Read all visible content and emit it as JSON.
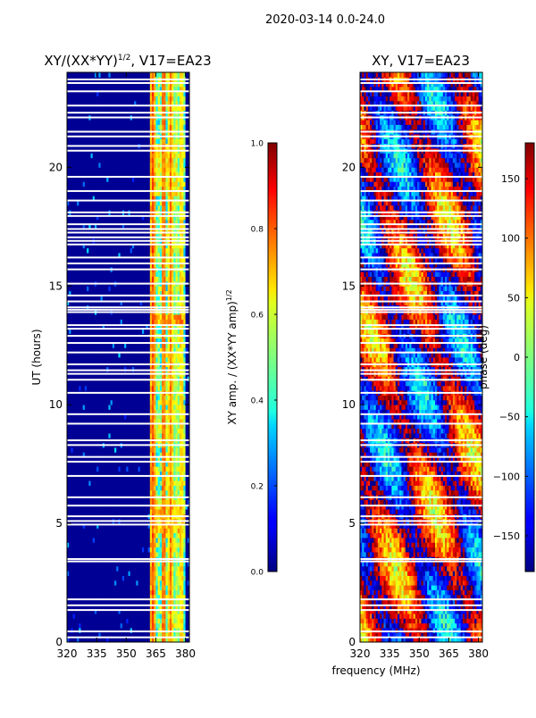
{
  "figure": {
    "suptitle": "2020-03-14 0.0-24.0",
    "shared_xlabel": "frequency (MHz)",
    "colors": {
      "background": "#ffffff",
      "flag_gap": "#ffffff",
      "low": "#00007f",
      "mid": "#7fff7f",
      "high": "#7f0000"
    }
  },
  "chart_data": [
    {
      "type": "heatmap",
      "title_prefix": "XY/(XX*YY)",
      "title_superscript": "1/2",
      "title_suffix": ", V17=EA23",
      "xlabel": "",
      "ylabel": "UT (hours)",
      "x_ticks": [
        320,
        335,
        350,
        365,
        380
      ],
      "y_ticks": [
        0,
        5,
        10,
        15,
        20
      ],
      "xlim": [
        320,
        382
      ],
      "ylim": [
        0,
        24
      ],
      "quantity": "normalized XY amplitude",
      "background_level": 0.02,
      "bright_band_mhz": [
        362,
        380
      ],
      "bright_band_level": 0.5,
      "vertical_stripes_mhz": [
        {
          "x": 363.5,
          "level": 0.8
        },
        {
          "x": 366.5,
          "level": 0.35
        },
        {
          "x": 369.0,
          "level": 0.8
        },
        {
          "x": 372.5,
          "level": 0.75
        },
        {
          "x": 375.5,
          "level": 0.55
        },
        {
          "x": 378.0,
          "level": 0.7
        }
      ],
      "hot_spots": [
        {
          "x0": 363,
          "x1": 380,
          "y0": 13.35,
          "y1": 13.8,
          "level": 0.8
        },
        {
          "x0": 363,
          "x1": 380,
          "y0": 4.6,
          "y1": 6.0,
          "level": 0.75
        },
        {
          "x0": 363,
          "x1": 372,
          "y0": 8.5,
          "y1": 9.6,
          "level": 0.65
        },
        {
          "x0": 363,
          "x1": 376,
          "y0": 18.9,
          "y1": 21.0,
          "level": 0.7
        }
      ],
      "flagged_ut_hours": [
        0.2,
        0.45,
        1.35,
        1.55,
        1.8,
        3.4,
        3.5,
        4.95,
        5.1,
        5.3,
        5.75,
        6.1,
        7.0,
        7.6,
        7.8,
        8.3,
        8.5,
        9.2,
        9.6,
        10.5,
        11.05,
        11.3,
        11.45,
        11.7,
        12.2,
        12.6,
        12.9,
        13.2,
        13.35,
        13.9,
        14.0,
        14.1,
        14.35,
        14.6,
        15.1,
        15.7,
        15.95,
        16.2,
        16.75,
        16.9,
        17.05,
        17.25,
        17.4,
        17.6,
        17.95,
        18.1,
        18.6,
        19.0,
        19.6,
        20.7,
        20.9,
        21.3,
        21.5,
        22.1,
        22.3,
        22.6,
        23.2,
        23.55,
        23.7
      ],
      "colorbar": {
        "label_prefix": "XY amp. / (XX*YY amp)",
        "label_superscript": "1/2",
        "range": [
          0.0,
          1.0
        ],
        "ticks": [
          "0.0",
          "0.2",
          "0.4",
          "0.6",
          "0.8",
          "1.0"
        ]
      }
    },
    {
      "type": "heatmap",
      "title": "XY, V17=EA23",
      "xlabel": "frequency (MHz)",
      "ylabel": "",
      "x_ticks": [
        320,
        335,
        350,
        365,
        380
      ],
      "y_ticks": [
        0,
        5,
        10,
        15,
        20
      ],
      "xlim": [
        320,
        382
      ],
      "ylim": [
        0,
        24
      ],
      "quantity": "XY phase (deg), noisy and wrapping",
      "flagged_ut_hours": [
        0.2,
        0.45,
        1.35,
        1.55,
        1.8,
        3.4,
        3.5,
        4.95,
        5.1,
        5.3,
        5.75,
        6.1,
        7.0,
        7.6,
        7.8,
        8.3,
        8.5,
        9.2,
        9.6,
        10.5,
        11.05,
        11.3,
        11.45,
        11.7,
        12.2,
        12.6,
        12.9,
        13.2,
        13.35,
        13.9,
        14.0,
        14.1,
        14.35,
        14.6,
        15.1,
        15.7,
        15.95,
        16.2,
        16.75,
        16.9,
        17.05,
        17.25,
        17.4,
        17.6,
        17.95,
        18.1,
        18.6,
        19.0,
        19.6,
        20.7,
        20.9,
        21.3,
        21.5,
        22.1,
        22.3,
        22.6,
        23.2,
        23.55,
        23.7
      ],
      "colorbar": {
        "label": "phase (deg)",
        "range": [
          -180,
          180
        ],
        "ticks": [
          "−150",
          "−100",
          "−50",
          "0",
          "50",
          "100",
          "150"
        ],
        "tick_values": [
          -150,
          -100,
          -50,
          0,
          50,
          100,
          150
        ]
      }
    }
  ]
}
